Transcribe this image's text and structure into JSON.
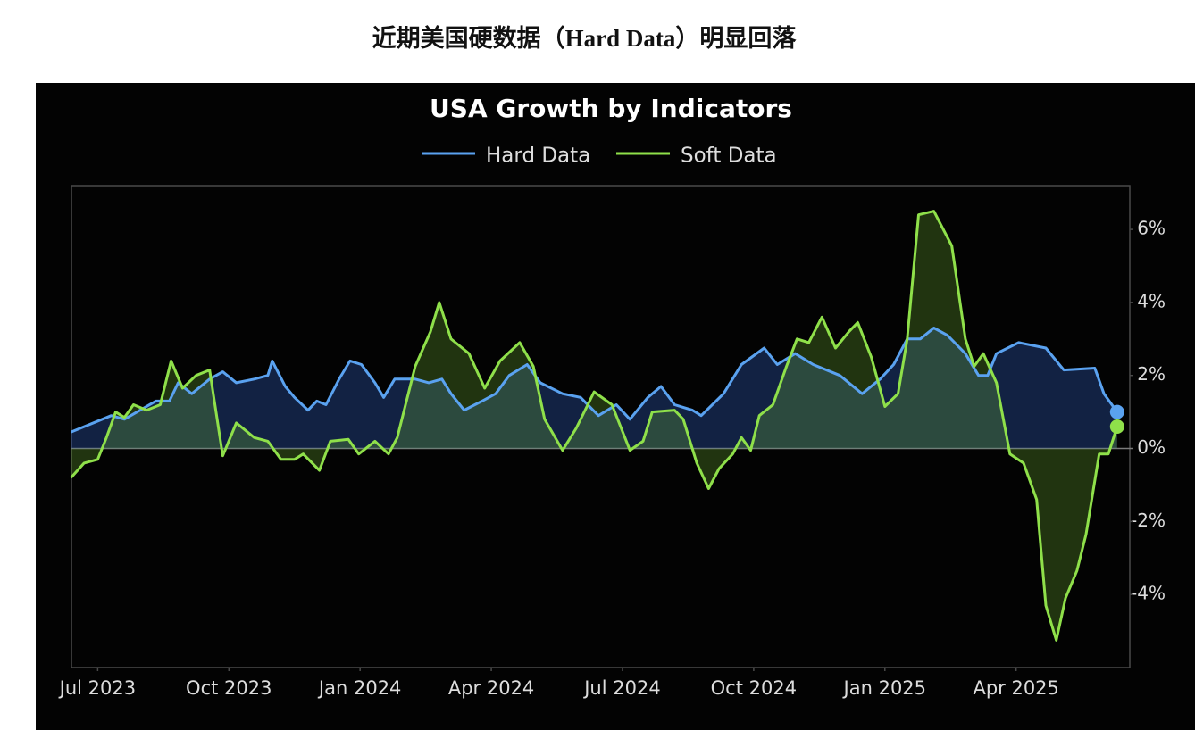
{
  "page_title": "近期美国硬数据（Hard Data）明显回落",
  "chart_data": {
    "type": "line",
    "title": "USA Growth by Indicators",
    "xlim": [
      -0.6,
      23.6
    ],
    "xticks": [
      {
        "value": 0,
        "label": "Jul 2023"
      },
      {
        "value": 3,
        "label": "Oct 2023"
      },
      {
        "value": 6,
        "label": "Jan 2024"
      },
      {
        "value": 9,
        "label": "Apr 2024"
      },
      {
        "value": 12,
        "label": "Jul 2024"
      },
      {
        "value": 15,
        "label": "Oct 2024"
      },
      {
        "value": 18,
        "label": "Jan 2025"
      },
      {
        "value": 21,
        "label": "Apr 2025"
      }
    ],
    "ylim": [
      -6,
      7.2
    ],
    "yticks": [
      {
        "value": -4,
        "label": "-4%"
      },
      {
        "value": -2,
        "label": "-2%"
      },
      {
        "value": 0,
        "label": "0%"
      },
      {
        "value": 2,
        "label": "2%"
      },
      {
        "value": 4,
        "label": "4%"
      },
      {
        "value": 6,
        "label": "6%"
      }
    ],
    "legend": "top",
    "series": [
      {
        "name": "Hard Data",
        "color": "#5aa2f0",
        "fill": "rgba(50,95,190,0.35)",
        "x": [
          -0.61,
          0.31,
          0.61,
          1.33,
          1.64,
          1.84,
          2.15,
          2.56,
          2.86,
          3.17,
          3.58,
          3.89,
          3.99,
          4.29,
          4.5,
          4.81,
          5.01,
          5.22,
          5.52,
          5.77,
          6.03,
          6.34,
          6.54,
          6.79,
          7.26,
          7.57,
          7.87,
          8.08,
          8.38,
          8.79,
          9.1,
          9.41,
          9.82,
          10.12,
          10.63,
          11.04,
          11.45,
          11.86,
          12.17,
          12.58,
          12.88,
          13.19,
          13.6,
          13.8,
          14.31,
          14.72,
          15.24,
          15.54,
          15.95,
          16.36,
          16.97,
          17.48,
          17.89,
          18.2,
          18.51,
          18.81,
          19.12,
          19.43,
          19.84,
          20.14,
          20.35,
          20.55,
          21.06,
          21.68,
          22.09,
          22.8,
          23.01,
          23.31
        ],
        "values": [
          0.45,
          0.9,
          0.8,
          1.3,
          1.3,
          1.8,
          1.5,
          1.9,
          2.1,
          1.8,
          1.9,
          2.0,
          2.4,
          1.7,
          1.4,
          1.05,
          1.3,
          1.2,
          1.9,
          2.4,
          2.3,
          1.8,
          1.4,
          1.9,
          1.9,
          1.8,
          1.9,
          1.5,
          1.05,
          1.3,
          1.5,
          2.0,
          2.3,
          1.8,
          1.5,
          1.4,
          0.9,
          1.2,
          0.8,
          1.4,
          1.7,
          1.2,
          1.05,
          0.9,
          1.5,
          2.3,
          2.75,
          2.3,
          2.6,
          2.3,
          2.0,
          1.5,
          1.9,
          2.3,
          3.0,
          3.0,
          3.3,
          3.1,
          2.6,
          2.0,
          2.0,
          2.6,
          2.9,
          2.75,
          2.15,
          2.2,
          1.5,
          1.0
        ]
      },
      {
        "name": "Soft Data",
        "color": "#8fe04a",
        "fill": "rgba(110,180,50,0.28)",
        "x": [
          -0.61,
          -0.31,
          0,
          0.2,
          0.41,
          0.61,
          0.82,
          1.12,
          1.43,
          1.68,
          1.94,
          2.25,
          2.56,
          2.86,
          3.17,
          3.58,
          3.89,
          4.19,
          4.5,
          4.7,
          5.07,
          5.32,
          5.73,
          5.97,
          6.34,
          6.65,
          6.85,
          7.26,
          7.61,
          7.81,
          8.08,
          8.49,
          8.85,
          9.2,
          9.65,
          9.96,
          10.22,
          10.63,
          10.94,
          11.35,
          11.76,
          12.17,
          12.47,
          12.68,
          13.19,
          13.39,
          13.7,
          13.97,
          14.21,
          14.52,
          14.72,
          14.93,
          15.13,
          15.44,
          15.75,
          15.99,
          16.26,
          16.56,
          16.87,
          17.18,
          17.38,
          17.69,
          18.0,
          18.3,
          18.51,
          18.77,
          19.12,
          19.53,
          19.84,
          20.04,
          20.25,
          20.55,
          20.86,
          21.17,
          21.47,
          21.68,
          21.92,
          22.13,
          22.39,
          22.6,
          22.9,
          23.11,
          23.31
        ],
        "values": [
          -0.8,
          -0.4,
          -0.3,
          0.3,
          1.0,
          0.85,
          1.2,
          1.05,
          1.2,
          2.4,
          1.65,
          2.0,
          2.15,
          -0.2,
          0.7,
          0.3,
          0.2,
          -0.3,
          -0.3,
          -0.15,
          -0.6,
          0.2,
          0.25,
          -0.15,
          0.2,
          -0.15,
          0.3,
          2.25,
          3.2,
          4.0,
          3.0,
          2.6,
          1.65,
          2.4,
          2.9,
          2.25,
          0.8,
          -0.05,
          0.55,
          1.55,
          1.2,
          -0.05,
          0.2,
          1.0,
          1.05,
          0.8,
          -0.4,
          -1.1,
          -0.55,
          -0.15,
          0.3,
          -0.05,
          0.9,
          1.2,
          2.25,
          3.0,
          2.9,
          3.6,
          2.75,
          3.2,
          3.45,
          2.5,
          1.15,
          1.5,
          3.0,
          6.4,
          6.5,
          5.55,
          3.0,
          2.25,
          2.6,
          1.8,
          -0.15,
          -0.4,
          -1.4,
          -4.3,
          -5.25,
          -4.1,
          -3.35,
          -2.35,
          -0.15,
          -0.15,
          0.6
        ]
      }
    ]
  }
}
